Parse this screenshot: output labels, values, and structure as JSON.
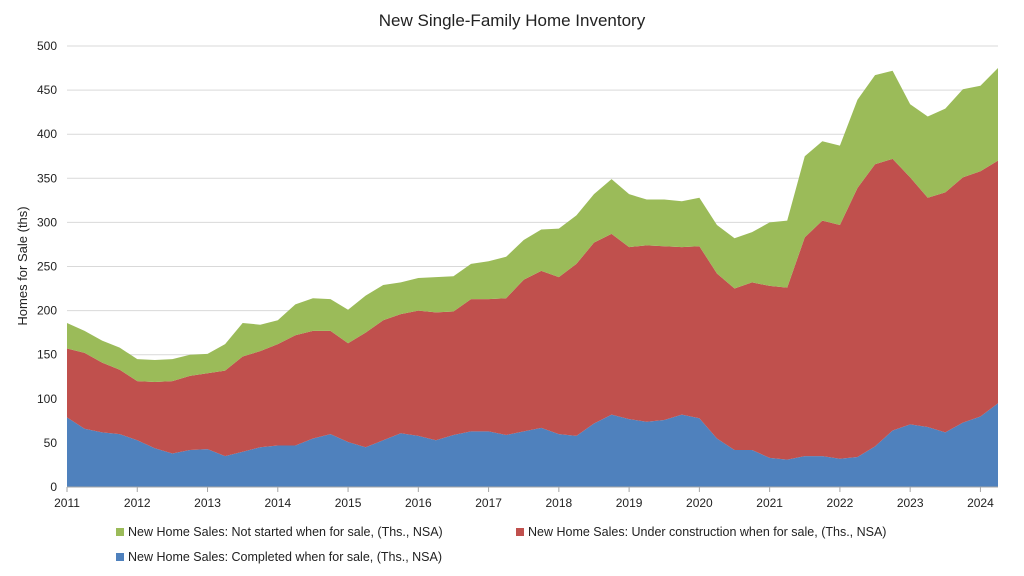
{
  "chart_data": {
    "type": "area",
    "stacked": true,
    "title": "New Single-Family Home Inventory",
    "ylabel": "Homes for Sale (ths)",
    "xlabel": "",
    "ylim": [
      0,
      500
    ],
    "xlim": [
      2011,
      2024.25
    ],
    "yticks": [
      "0",
      "50",
      "100",
      "150",
      "200",
      "250",
      "300",
      "350",
      "400",
      "450",
      "500"
    ],
    "xticks": [
      "2011",
      "2012",
      "2013",
      "2014",
      "2015",
      "2016",
      "2017",
      "2018",
      "2019",
      "2020",
      "2021",
      "2022",
      "2023",
      "2024"
    ],
    "grid": "horizontal",
    "legend_position": "bottom",
    "x": [
      2011.0,
      2011.25,
      2011.5,
      2011.75,
      2012.0,
      2012.25,
      2012.5,
      2012.75,
      2013.0,
      2013.25,
      2013.5,
      2013.75,
      2014.0,
      2014.25,
      2014.5,
      2014.75,
      2015.0,
      2015.25,
      2015.5,
      2015.75,
      2016.0,
      2016.25,
      2016.5,
      2016.75,
      2017.0,
      2017.25,
      2017.5,
      2017.75,
      2018.0,
      2018.25,
      2018.5,
      2018.75,
      2019.0,
      2019.25,
      2019.5,
      2019.75,
      2020.0,
      2020.25,
      2020.5,
      2020.75,
      2021.0,
      2021.25,
      2021.5,
      2021.75,
      2022.0,
      2022.25,
      2022.5,
      2022.75,
      2023.0,
      2023.25,
      2023.5,
      2023.75,
      2024.0,
      2024.25
    ],
    "series": [
      {
        "name": "New Home Sales: Completed when for sale, (Ths., NSA)",
        "color": "#4f81bd",
        "values": [
          79,
          66,
          62,
          60,
          53,
          44,
          38,
          42,
          43,
          35,
          40,
          45,
          47,
          47,
          55,
          60,
          51,
          45,
          53,
          61,
          58,
          53,
          59,
          63,
          63,
          59,
          63,
          67,
          60,
          58,
          72,
          82,
          77,
          74,
          76,
          82,
          78,
          55,
          42,
          42,
          33,
          31,
          35,
          35,
          32,
          34,
          46,
          64,
          71,
          68,
          62,
          73,
          80,
          95
        ]
      },
      {
        "name": "New Home Sales: Under construction when for sale, (Ths., NSA)",
        "color": "#c0504d",
        "values": [
          78,
          86,
          79,
          73,
          67,
          75,
          82,
          84,
          86,
          97,
          108,
          109,
          115,
          125,
          122,
          117,
          112,
          130,
          136,
          135,
          142,
          145,
          140,
          150,
          150,
          155,
          172,
          178,
          178,
          195,
          205,
          205,
          195,
          200,
          197,
          190,
          195,
          187,
          183,
          190,
          195,
          195,
          248,
          267,
          265,
          305,
          320,
          308,
          280,
          260,
          272,
          278,
          278,
          275
        ]
      },
      {
        "name": "New Home Sales: Not started when for sale, (Ths., NSA)",
        "color": "#9bbb59",
        "values": [
          29,
          25,
          25,
          25,
          25,
          25,
          25,
          24,
          22,
          30,
          38,
          30,
          27,
          35,
          37,
          36,
          38,
          42,
          40,
          36,
          37,
          40,
          40,
          40,
          43,
          47,
          45,
          47,
          55,
          55,
          55,
          62,
          60,
          52,
          53,
          52,
          55,
          55,
          57,
          57,
          72,
          76,
          92,
          90,
          90,
          100,
          101,
          100,
          83,
          92,
          95,
          100,
          97,
          105
        ]
      }
    ],
    "legend": [
      "New Home Sales: Not started when for sale, (Ths., NSA)",
      "New Home Sales: Under construction when for sale, (Ths., NSA)",
      "New Home Sales: Completed when for sale, (Ths., NSA)"
    ]
  },
  "colors": {
    "completed": "#4f81bd",
    "under_construction": "#c0504d",
    "not_started": "#9bbb59",
    "grid": "#d9d9d9",
    "axis": "#a6a6a6"
  }
}
